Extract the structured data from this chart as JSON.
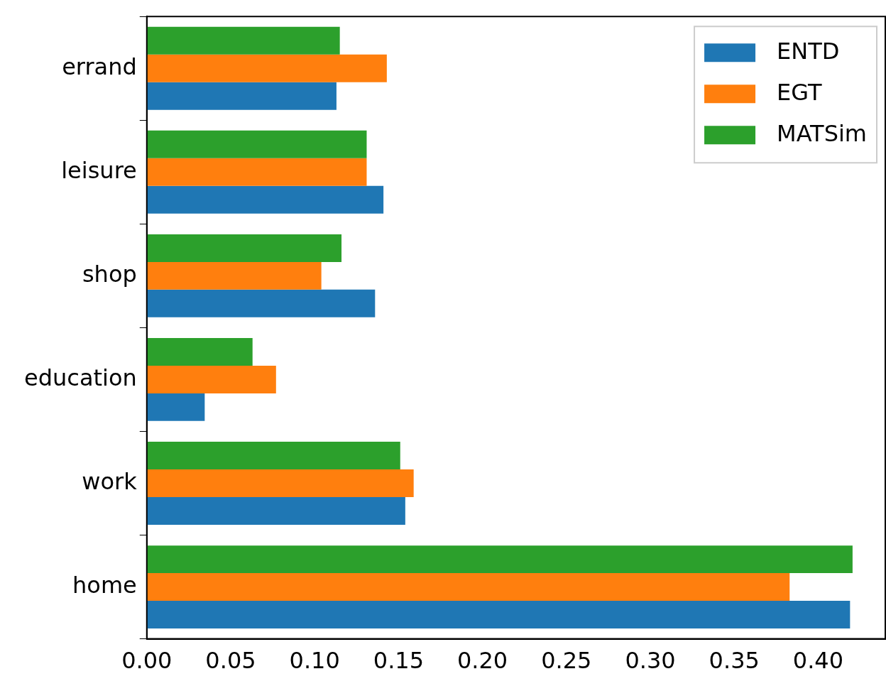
{
  "chart_data": {
    "type": "bar",
    "orientation": "horizontal",
    "categories": [
      "errand",
      "leisure",
      "shop",
      "education",
      "work",
      "home"
    ],
    "series": [
      {
        "name": "ENTD",
        "color": "#1f77b4",
        "values": [
          0.113,
          0.141,
          0.136,
          0.0345,
          0.154,
          0.419
        ]
      },
      {
        "name": "EGT",
        "color": "#ff7f0e",
        "values": [
          0.143,
          0.131,
          0.104,
          0.077,
          0.159,
          0.383
        ]
      },
      {
        "name": "MATSim",
        "color": "#2ca02c",
        "values": [
          0.115,
          0.131,
          0.116,
          0.063,
          0.151,
          0.4205
        ]
      }
    ],
    "xlim": [
      0,
      0.44
    ],
    "xticks": [
      {
        "value": 0,
        "label": "0.00"
      },
      {
        "value": 0.05,
        "label": "0.05"
      },
      {
        "value": 0.1,
        "label": "0.10"
      },
      {
        "value": 0.15,
        "label": "0.15"
      },
      {
        "value": 0.2,
        "label": "0.20"
      },
      {
        "value": 0.25,
        "label": "0.25"
      },
      {
        "value": 0.3,
        "label": "0.30"
      },
      {
        "value": 0.35,
        "label": "0.35"
      },
      {
        "value": 0.4,
        "label": "0.40"
      }
    ],
    "grid": false,
    "legend": "top right"
  }
}
